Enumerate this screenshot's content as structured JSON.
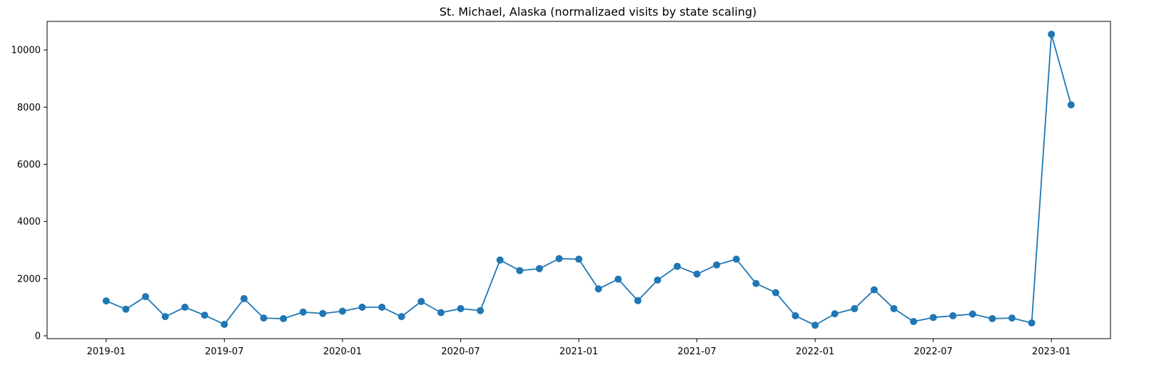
{
  "chart_data": {
    "type": "line",
    "title": "St. Michael, Alaska (normalizaed visits by state scaling)",
    "xlabel": "",
    "ylabel": "",
    "x_tick_labels": [
      "2019-01",
      "2019-07",
      "2020-01",
      "2020-07",
      "2021-01",
      "2021-07",
      "2022-01",
      "2022-07",
      "2023-01"
    ],
    "y_tick_labels": [
      "0",
      "2000",
      "4000",
      "6000",
      "8000",
      "10000"
    ],
    "y_ticks": [
      0,
      2000,
      4000,
      6000,
      8000,
      10000
    ],
    "ylim": [
      -100,
      11000
    ],
    "xlim": [
      "2018-10",
      "2023-04"
    ],
    "grid": false,
    "legend": "none",
    "series": [
      {
        "color": "#1f77b4",
        "marker": "circle",
        "x": [
          "2019-01",
          "2019-02",
          "2019-03",
          "2019-04",
          "2019-05",
          "2019-06",
          "2019-07",
          "2019-08",
          "2019-09",
          "2019-10",
          "2019-11",
          "2019-12",
          "2020-01",
          "2020-02",
          "2020-03",
          "2020-04",
          "2020-05",
          "2020-06",
          "2020-07",
          "2020-08",
          "2020-09",
          "2020-10",
          "2020-11",
          "2020-12",
          "2021-01",
          "2021-02",
          "2021-03",
          "2021-04",
          "2021-05",
          "2021-06",
          "2021-07",
          "2021-08",
          "2021-09",
          "2021-10",
          "2021-11",
          "2021-12",
          "2022-01",
          "2022-02",
          "2022-03",
          "2022-04",
          "2022-05",
          "2022-06",
          "2022-07",
          "2022-08",
          "2022-09",
          "2022-10",
          "2022-11",
          "2022-12",
          "2023-01",
          "2023-02"
        ],
        "values": [
          1220,
          930,
          1370,
          670,
          1000,
          720,
          400,
          1300,
          620,
          600,
          830,
          780,
          860,
          1000,
          1000,
          670,
          1200,
          810,
          950,
          880,
          2650,
          2280,
          2350,
          2700,
          2680,
          1640,
          1980,
          1230,
          1950,
          2430,
          2160,
          2480,
          2680,
          1830,
          1510,
          700,
          370,
          770,
          950,
          1610,
          950,
          500,
          640,
          700,
          760,
          600,
          620,
          450,
          10550,
          8080
        ]
      }
    ]
  }
}
